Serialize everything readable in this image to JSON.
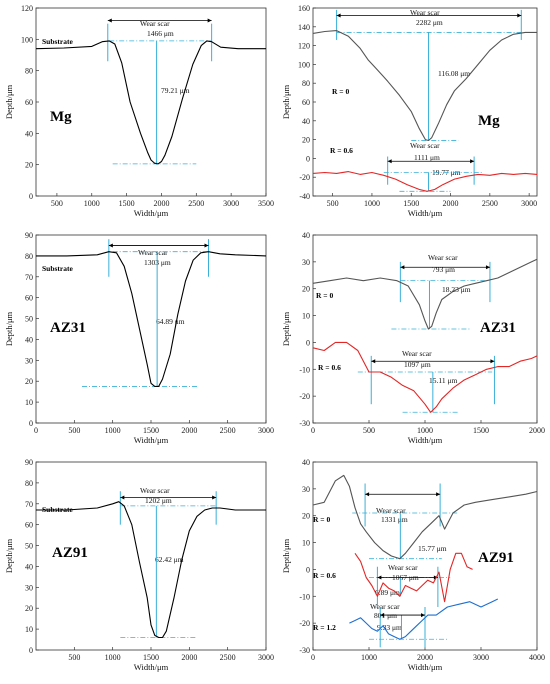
{
  "chart_data": [
    {
      "type": "line",
      "material": "Mg",
      "xlabel": "Width/μm",
      "ylabel": "Depth/μm",
      "xlim": [
        200,
        3500
      ],
      "ylim": [
        0,
        120
      ],
      "xticks": [
        500,
        1000,
        1500,
        2000,
        2500,
        3000,
        3500
      ],
      "yticks": [
        0,
        20,
        40,
        60,
        80,
        100,
        120
      ],
      "series": [
        {
          "color": "#000000",
          "x": [
            200,
            600,
            1000,
            1150,
            1250,
            1330,
            1430,
            1550,
            1700,
            1800,
            1850,
            1900,
            1950,
            2000,
            2050,
            2150,
            2300,
            2450,
            2570,
            2650,
            2720,
            2850,
            3100,
            3500
          ],
          "y": [
            94,
            94.5,
            95.5,
            98.5,
            99,
            97,
            85,
            60,
            40,
            28,
            23,
            21,
            20.5,
            22,
            26,
            38,
            62,
            84,
            96,
            99,
            98.5,
            95,
            94,
            94
          ]
        }
      ],
      "annotations": [
        {
          "text": "Substrate",
          "kind": "label"
        },
        {
          "text": "Wear scar",
          "kind": "span",
          "x1": 1230,
          "x2": 2720
        },
        {
          "text": "1466 μm",
          "kind": "span_value"
        },
        {
          "text": "79.21 μm",
          "kind": "depth"
        }
      ],
      "wear_width": 1466,
      "wear_depth": 79.21
    },
    {
      "type": "line",
      "material": "Mg",
      "xlabel": "Width/μm",
      "ylabel": "Depth/μm",
      "xlim": [
        250,
        3100
      ],
      "ylim": [
        -40,
        160
      ],
      "xticks": [
        500,
        1000,
        1500,
        2000,
        2500,
        3000
      ],
      "yticks": [
        -40,
        -20,
        0,
        20,
        40,
        60,
        80,
        100,
        120,
        140,
        160
      ],
      "series": [
        {
          "name": "R = 0",
          "color": "#555555",
          "x": [
            250,
            400,
            550,
            700,
            850,
            950,
            1050,
            1200,
            1350,
            1500,
            1600,
            1680,
            1720,
            1760,
            1850,
            1950,
            2050,
            2200,
            2350,
            2500,
            2650,
            2800,
            2950,
            3100
          ],
          "y": [
            133,
            135,
            136,
            130,
            117,
            105,
            96,
            82,
            67,
            50,
            32,
            20,
            19,
            22,
            38,
            57,
            72,
            85,
            100,
            115,
            126,
            132,
            134,
            134
          ]
        },
        {
          "name": "R = 0.6",
          "color": "#e32626",
          "x": [
            250,
            400,
            550,
            700,
            850,
            1000,
            1150,
            1300,
            1450,
            1600,
            1700,
            1750,
            1800,
            1900,
            2050,
            2200,
            2350,
            2500,
            2650,
            2800,
            2950,
            3100
          ],
          "y": [
            -16,
            -15,
            -16,
            -14,
            -17,
            -15,
            -18,
            -22,
            -28,
            -33,
            -35,
            -34,
            -33,
            -28,
            -22,
            -19,
            -17,
            -18,
            -16,
            -17,
            -16,
            -17
          ]
        }
      ],
      "annotations": [
        {
          "text": "Wear scar",
          "kind": "span",
          "x1": 550,
          "x2": 2900
        },
        {
          "text": "2282 μm",
          "kind": "span_value"
        },
        {
          "text": "116.08 μm",
          "kind": "depth"
        },
        {
          "text": "Wear scar",
          "kind": "span",
          "x1": 1200,
          "x2": 2300
        },
        {
          "text": "1111 μm",
          "kind": "span_value"
        },
        {
          "text": "19.77 μm",
          "kind": "depth"
        }
      ]
    },
    {
      "type": "line",
      "material": "AZ31",
      "xlabel": "Width/μm",
      "ylabel": "Depth/μm",
      "xlim": [
        0,
        3000
      ],
      "ylim": [
        0,
        90
      ],
      "xticks": [
        0,
        500,
        1000,
        1500,
        2000,
        2500,
        3000
      ],
      "yticks": [
        0,
        10,
        20,
        30,
        40,
        50,
        60,
        70,
        80,
        90
      ],
      "series": [
        {
          "color": "#000000",
          "x": [
            0,
            400,
            800,
            950,
            1050,
            1150,
            1250,
            1350,
            1450,
            1500,
            1550,
            1600,
            1650,
            1750,
            1850,
            1950,
            2050,
            2150,
            2250,
            2400,
            2600,
            3000
          ],
          "y": [
            80,
            80,
            80.5,
            82,
            81.5,
            75,
            62,
            45,
            28,
            19,
            17.5,
            17.5,
            21,
            33,
            52,
            68,
            78,
            81.5,
            82,
            81,
            80.5,
            80
          ]
        }
      ],
      "annotations": [
        {
          "text": "Substrate",
          "kind": "label"
        },
        {
          "text": "Wear scar",
          "kind": "span",
          "x1": 950,
          "x2": 2250
        },
        {
          "text": "1303 μm",
          "kind": "span_value"
        },
        {
          "text": "64.89 μm",
          "kind": "depth"
        }
      ]
    },
    {
      "type": "line",
      "material": "AZ31",
      "xlabel": "Width/μm",
      "ylabel": "Depth/μm",
      "xlim": [
        0,
        2000
      ],
      "ylim": [
        -30,
        40
      ],
      "xticks": [
        0,
        500,
        1000,
        1500,
        2000
      ],
      "yticks": [
        -30,
        -20,
        -10,
        0,
        10,
        20,
        30,
        40
      ],
      "series": [
        {
          "name": "R = 0",
          "color": "#555555",
          "x": [
            0,
            150,
            300,
            450,
            600,
            750,
            850,
            950,
            1000,
            1030,
            1060,
            1100,
            1150,
            1250,
            1350,
            1450,
            1550,
            1650,
            1750,
            1850,
            1950,
            2000
          ],
          "y": [
            22,
            23,
            24,
            23,
            24,
            23,
            21,
            14,
            8,
            5,
            6,
            11,
            16,
            19,
            21,
            22,
            23,
            24,
            26,
            28,
            30,
            31
          ]
        },
        {
          "name": "R = 0.6",
          "color": "#e32626",
          "x": [
            0,
            100,
            200,
            300,
            400,
            500,
            600,
            700,
            800,
            900,
            1000,
            1050,
            1100,
            1150,
            1250,
            1350,
            1450,
            1550,
            1650,
            1750,
            1850,
            1950,
            2000
          ],
          "y": [
            -2,
            -3,
            0,
            0,
            -3,
            -11,
            -11,
            -13,
            -16,
            -18,
            -23,
            -26,
            -24,
            -21,
            -17,
            -14,
            -12,
            -10,
            -9,
            -9,
            -7,
            -6,
            -5
          ]
        }
      ],
      "annotations": [
        {
          "text": "Wear scar",
          "kind": "span",
          "x1": 780,
          "x2": 1580
        },
        {
          "text": "793 μm",
          "kind": "span_value"
        },
        {
          "text": "18.23 μm",
          "kind": "depth"
        },
        {
          "text": "Wear scar",
          "kind": "span",
          "x1": 520,
          "x2": 1620
        },
        {
          "text": "1097 μm",
          "kind": "span_value"
        },
        {
          "text": "15.11 μm",
          "kind": "depth"
        }
      ]
    },
    {
      "type": "line",
      "material": "AZ91",
      "xlabel": "Width/μm",
      "ylabel": "Depth/μm",
      "xlim": [
        0,
        3000
      ],
      "ylim": [
        0,
        90
      ],
      "xticks": [
        500,
        1000,
        1500,
        2000,
        2500,
        3000
      ],
      "yticks": [
        0,
        10,
        20,
        30,
        40,
        50,
        60,
        70,
        80,
        90
      ],
      "series": [
        {
          "color": "#000000",
          "x": [
            0,
            400,
            800,
            1000,
            1080,
            1150,
            1250,
            1350,
            1450,
            1500,
            1550,
            1600,
            1650,
            1700,
            1800,
            1900,
            2000,
            2100,
            2200,
            2300,
            2400,
            2600,
            3000
          ],
          "y": [
            67,
            67,
            68,
            70,
            71,
            69,
            60,
            42,
            25,
            12,
            7,
            6,
            6,
            9,
            25,
            43,
            57,
            64,
            67,
            68,
            68,
            67,
            67
          ]
        }
      ],
      "annotations": [
        {
          "text": "Substrate",
          "kind": "label"
        },
        {
          "text": "Wear scar",
          "kind": "span",
          "x1": 1100,
          "x2": 2350
        },
        {
          "text": "1202 μm",
          "kind": "span_value"
        },
        {
          "text": "62.42 μm",
          "kind": "depth"
        }
      ]
    },
    {
      "type": "line",
      "material": "AZ91",
      "xlabel": "Width/μm",
      "ylabel": "Depth/μm",
      "xlim": [
        0,
        4000
      ],
      "ylim": [
        -30,
        40
      ],
      "xticks": [
        0,
        1000,
        2000,
        3000,
        4000
      ],
      "yticks": [
        -30,
        -20,
        -10,
        0,
        10,
        20,
        30,
        40
      ],
      "series": [
        {
          "name": "R = 0",
          "color": "#555555",
          "x": [
            0,
            200,
            400,
            550,
            650,
            750,
            850,
            950,
            1100,
            1250,
            1400,
            1550,
            1650,
            1800,
            1950,
            2100,
            2250,
            2350,
            2500,
            2700,
            2900,
            3200,
            3500,
            3800,
            4000
          ],
          "y": [
            24,
            25,
            33,
            35,
            31,
            23,
            17,
            14,
            10,
            7,
            5,
            4,
            6,
            10,
            14,
            17,
            20,
            15,
            21,
            24,
            25,
            26,
            27,
            28,
            29
          ]
        },
        {
          "name": "R = 0.6",
          "color": "#e32626",
          "x": [
            750,
            850,
            950,
            1050,
            1150,
            1250,
            1350,
            1450,
            1550,
            1650,
            1750,
            1850,
            1950,
            2050,
            2150,
            2250,
            2350,
            2450,
            2550,
            2650,
            2750,
            2850
          ],
          "y": [
            6,
            3,
            -3,
            -6,
            -10,
            -5,
            -7,
            -8,
            -10,
            -6,
            -7,
            -8,
            -6,
            -4,
            -5,
            -1,
            -12,
            0,
            6,
            6,
            1,
            0
          ]
        },
        {
          "name": "R = 1.2",
          "color": "#1e6fd0",
          "x": [
            650,
            750,
            850,
            950,
            1050,
            1150,
            1250,
            1350,
            1450,
            1550,
            1650,
            1750,
            1850,
            1950,
            2050,
            2200,
            2400,
            2600,
            2800,
            3000,
            3200,
            3300
          ],
          "y": [
            -20,
            -19,
            -18,
            -20,
            -22,
            -23,
            -21,
            -24,
            -25,
            -26,
            -25,
            -23,
            -21,
            -19,
            -17,
            -17,
            -14,
            -13,
            -12,
            -14,
            -12,
            -11
          ]
        }
      ],
      "annotations": [
        {
          "text": "Wear scar",
          "kind": "span",
          "x1": 930,
          "x2": 2270
        },
        {
          "text": "1331 μm",
          "kind": "span_value"
        },
        {
          "text": "15.77 μm",
          "kind": "depth"
        },
        {
          "text": "Wear scar",
          "kind": "span",
          "x1": 1150,
          "x2": 2230
        },
        {
          "text": "1067 μm",
          "kind": "span_value"
        },
        {
          "text": "6.89 μm",
          "kind": "depth"
        },
        {
          "text": "Wear scar",
          "kind": "span",
          "x1": 1200,
          "x2": 2000
        },
        {
          "text": "801 μm",
          "kind": "span_value"
        },
        {
          "text": "9.33 μm",
          "kind": "depth"
        }
      ]
    }
  ],
  "accent": {
    "guide": "#3ab0d8",
    "black": "#000000",
    "gray": "#555555",
    "red": "#e32626",
    "blue": "#1e6fd0"
  }
}
